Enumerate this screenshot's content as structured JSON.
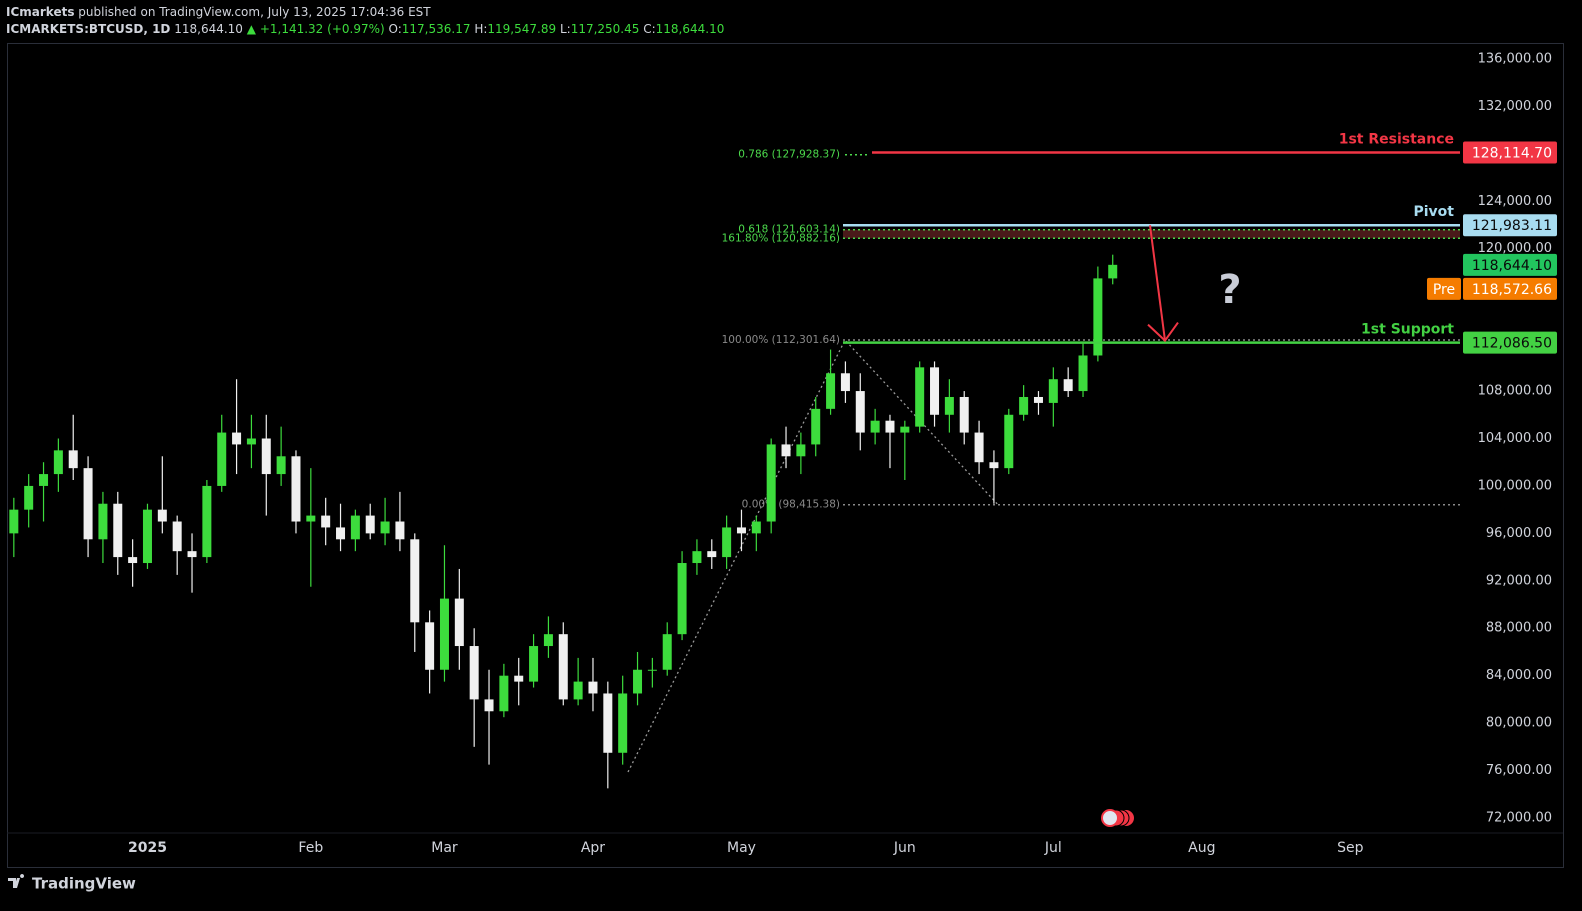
{
  "header": {
    "publisher": "ICmarkets",
    "published": "published on TradingView.com, July 13, 2025 17:04:36 EST",
    "symbol": "ICMARKETS:BTCUSD, 1D",
    "last": "118,644.10",
    "change": "▲ +1,141.32 (+0.97%)",
    "ohlc": [
      {
        "key": "O:",
        "value": "117,536.17"
      },
      {
        "key": "H:",
        "value": "119,547.89"
      },
      {
        "key": "L:",
        "value": "117,250.45"
      },
      {
        "key": "C:",
        "value": "118,644.10"
      }
    ]
  },
  "chart_data": {
    "type": "candlestick",
    "categories": [
      null,
      null,
      null,
      null,
      null,
      null,
      null,
      null,
      null,
      "2025",
      null,
      null,
      null,
      null,
      null,
      null,
      null,
      null,
      null,
      null,
      "Feb",
      null,
      null,
      null,
      null,
      null,
      null,
      null,
      null,
      "Mar",
      null,
      null,
      null,
      null,
      null,
      null,
      null,
      null,
      null,
      "Apr",
      null,
      null,
      null,
      null,
      null,
      null,
      null,
      null,
      null,
      "May",
      null,
      null,
      null,
      null,
      null,
      null,
      null,
      null,
      null,
      null,
      "Jun",
      null,
      null,
      null,
      null,
      null,
      null,
      null,
      null,
      null,
      "Jul",
      null,
      null,
      null,
      null,
      null,
      null,
      null,
      null,
      null,
      "Aug",
      null,
      null,
      null,
      null,
      null,
      null,
      null,
      null,
      null,
      "Sep",
      null,
      null,
      null,
      null,
      null,
      null,
      null
    ],
    "open": [
      96000,
      98000,
      100000,
      101000,
      103000,
      101500,
      95500,
      98500,
      94000,
      93500,
      98000,
      97000,
      94500,
      94000,
      100000,
      104500,
      103500,
      104000,
      101000,
      102500,
      97000,
      97500,
      96500,
      95500,
      97500,
      96000,
      97000,
      95500,
      88500,
      84500,
      90500,
      86500,
      82000,
      81000,
      84000,
      83500,
      86500,
      87500,
      82000,
      83500,
      82500,
      77500,
      82500,
      84500,
      84500,
      87500,
      93500,
      94500,
      94000,
      96500,
      96000,
      97000,
      103500,
      102500,
      103500,
      106500,
      109500,
      108000,
      104500,
      105500,
      104500,
      105000,
      110000,
      106000,
      107500,
      104500,
      102000,
      101500,
      106000,
      107500,
      107000,
      109000,
      108000,
      111000,
      117500,
      null,
      null,
      null,
      null,
      null,
      null,
      null,
      null,
      null,
      null,
      null,
      null,
      null,
      null,
      null,
      null,
      null,
      null,
      null,
      null,
      null,
      null,
      null
    ],
    "high": [
      99000,
      101000,
      102000,
      104000,
      106000,
      102500,
      99500,
      99500,
      95500,
      98500,
      102500,
      97500,
      96000,
      100500,
      106000,
      109000,
      106000,
      106000,
      105000,
      103000,
      101500,
      99000,
      98500,
      98000,
      98500,
      99000,
      99500,
      96000,
      89500,
      95000,
      93000,
      88000,
      84500,
      85000,
      85500,
      87500,
      89000,
      88500,
      85500,
      85500,
      83500,
      84000,
      86000,
      85500,
      88500,
      94500,
      95500,
      95500,
      97500,
      98000,
      97500,
      104000,
      105000,
      104500,
      107500,
      111500,
      110500,
      109500,
      106500,
      106000,
      105500,
      110500,
      110500,
      109000,
      108000,
      105500,
      103000,
      106500,
      108500,
      108000,
      110000,
      110000,
      112000,
      118500,
      119500,
      null,
      null,
      null,
      null,
      null,
      null,
      null,
      null,
      null,
      null,
      null,
      null,
      null,
      null,
      null,
      null,
      null,
      null,
      null,
      null,
      null,
      null,
      null
    ],
    "low": [
      94000,
      96500,
      97000,
      99500,
      100500,
      94000,
      93500,
      92500,
      91500,
      93000,
      96000,
      92500,
      91000,
      93500,
      99500,
      101000,
      101500,
      97500,
      100000,
      96000,
      91500,
      95000,
      94500,
      94500,
      95500,
      95000,
      94500,
      86000,
      82500,
      83500,
      84500,
      78000,
      76500,
      80500,
      81500,
      83000,
      85500,
      81500,
      81500,
      81000,
      74500,
      76500,
      81500,
      83000,
      84000,
      87000,
      92500,
      93000,
      93000,
      94500,
      94500,
      96000,
      101500,
      101000,
      102500,
      106000,
      107000,
      103000,
      103500,
      101500,
      100500,
      104500,
      105000,
      104500,
      103500,
      101000,
      98500,
      101000,
      105500,
      106000,
      105000,
      107500,
      107500,
      110500,
      117000,
      null,
      null,
      null,
      null,
      null,
      null,
      null,
      null,
      null,
      null,
      null,
      null,
      null,
      null,
      null,
      null,
      null,
      null,
      null,
      null,
      null,
      null,
      null
    ],
    "close": [
      98000,
      100000,
      101000,
      103000,
      101500,
      95500,
      98500,
      94000,
      93500,
      98000,
      97000,
      94500,
      94000,
      100000,
      104500,
      103500,
      104000,
      101000,
      102500,
      97000,
      97500,
      96500,
      95500,
      97500,
      96000,
      97000,
      95500,
      88500,
      84500,
      90500,
      86500,
      82000,
      81000,
      84000,
      83500,
      86500,
      87500,
      82000,
      83500,
      82500,
      77500,
      82500,
      84500,
      84500,
      87500,
      93500,
      94500,
      94000,
      96500,
      96000,
      97000,
      103500,
      102500,
      103500,
      106500,
      109500,
      108000,
      104500,
      105500,
      104500,
      105000,
      110000,
      106000,
      107500,
      104500,
      102000,
      101500,
      106000,
      107500,
      107000,
      109000,
      108000,
      111000,
      117500,
      118644.1,
      null,
      null,
      null,
      null,
      null,
      null,
      null,
      null,
      null,
      null,
      null,
      null,
      null,
      null,
      null,
      null,
      null,
      null,
      null,
      null,
      null,
      null,
      null
    ],
    "up_color": "#3ddc3d",
    "down_color": "#f0f0f0",
    "ylim": [
      70735,
      137349
    ],
    "yticks": [
      {
        "value": 136000,
        "label": "136,000.00"
      },
      {
        "value": 132000,
        "label": "132,000.00"
      },
      {
        "value": 124000,
        "label": "124,000.00"
      },
      {
        "value": 120000,
        "label": "120,000.00"
      },
      {
        "value": 108000,
        "label": "108,000.00"
      },
      {
        "value": 104000,
        "label": "104,000.00"
      },
      {
        "value": 100000,
        "label": "100,000.00"
      },
      {
        "value": 96000,
        "label": "96,000.00"
      },
      {
        "value": 92000,
        "label": "92,000.00"
      },
      {
        "value": 88000,
        "label": "88,000.00"
      },
      {
        "value": 84000,
        "label": "84,000.00"
      },
      {
        "value": 80000,
        "label": "80,000.00"
      },
      {
        "value": 76000,
        "label": "76,000.00"
      },
      {
        "value": 72000,
        "label": "72,000.00"
      }
    ],
    "levels": [
      {
        "name": "1st Resistance",
        "value": 128114.7,
        "label": "128,114.70",
        "color": "#f23645",
        "text_color": "#ffffff"
      },
      {
        "name": "Pivot",
        "value": 121983.11,
        "label": "121,983.11",
        "color": "#a8dcf0",
        "text_color": "#0a0a0a"
      },
      {
        "name": "1st Support",
        "value": 112086.5,
        "label": "112,086.50",
        "color": "#43d143",
        "text_color": "#0a0a0a"
      }
    ],
    "fib_levels": [
      {
        "value": 127928.37,
        "label": "0.786 (127,928.37)",
        "color": "#4cd94c"
      },
      {
        "value": 121603.14,
        "label": "0.618 (121,603.14)",
        "color": "#4cd94c"
      },
      {
        "value": 120882.16,
        "label": "161.80% (120,882.16)",
        "color": "#4cd94c"
      },
      {
        "value": 112301.64,
        "label": "100.00% (112,301.64)",
        "color": "#8a8a8a"
      },
      {
        "value": 98415.38,
        "label": "0.00% (98,415.38)",
        "color": "#8a8a8a"
      }
    ],
    "last_price": {
      "value": 118644.1,
      "label": "118,644.10",
      "color": "#22c55e"
    },
    "pre_price": {
      "name": "Pre",
      "value": 118572.66,
      "label": "118,572.66",
      "color": "#f57c00"
    },
    "annotation": "?"
  },
  "footer": {
    "brand": "TradingView"
  }
}
